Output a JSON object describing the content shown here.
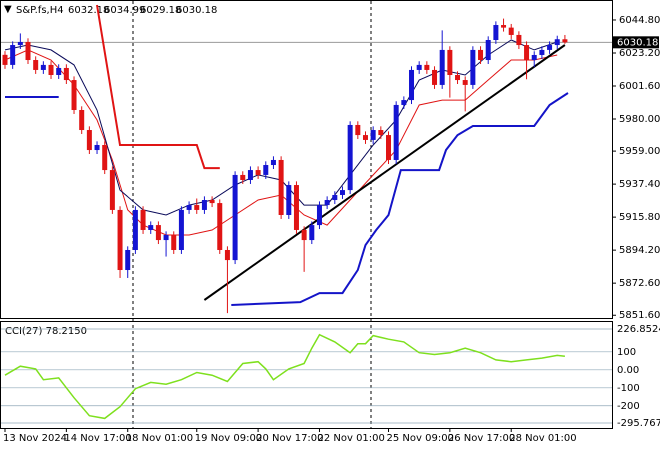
{
  "chart_data": {
    "type": "candlestick",
    "title": "S&P.fs,H4",
    "categories": [
      "13 Nov 2024",
      null,
      null,
      null,
      null,
      null,
      null,
      null,
      "14 Nov 17:00",
      null,
      null,
      null,
      null,
      null,
      null,
      null,
      "18 Nov 01:00",
      null,
      null,
      null,
      null,
      null,
      null,
      null,
      null,
      "19 Nov 09:00",
      null,
      null,
      null,
      null,
      null,
      null,
      null,
      "20 Nov 17:00",
      null,
      null,
      null,
      null,
      null,
      null,
      null,
      "22 Nov 01:00",
      null,
      null,
      null,
      null,
      null,
      null,
      null,
      null,
      "25 Nov 09:00",
      null,
      null,
      null,
      null,
      null,
      null,
      null,
      "26 Nov 17:00",
      null,
      null,
      null,
      null,
      null,
      null,
      null,
      "28 Nov 01:00",
      null,
      null,
      null,
      null,
      null,
      null,
      null
    ],
    "open": [
      6022.0,
      6015.4,
      6028.4,
      6030.4,
      6018.6,
      6012.1,
      6015.4,
      6008.8,
      6013.4,
      6005.5,
      5985.9,
      5972.8,
      5959.7,
      5963.0,
      5946.6,
      5920.5,
      5881.2,
      5894.3,
      5920.5,
      5907.4,
      5910.6,
      5900.8,
      5904.1,
      5894.3,
      5920.5,
      5923.7,
      5920.5,
      5927.0,
      5925.0,
      5894.3,
      5887.7,
      5943.4,
      5940.1,
      5946.6,
      5943.4,
      5949.9,
      5953.2,
      5917.2,
      5936.8,
      5907.4,
      5900.8,
      5910.6,
      5923.7,
      5927.0,
      5930.3,
      5933.5,
      5976.1,
      5969.5,
      5966.3,
      5972.8,
      5969.5,
      5953.2,
      5989.2,
      5992.4,
      6012.1,
      6015.4,
      6012.1,
      6002.3,
      6025.2,
      6008.8,
      6005.5,
      6002.3,
      6025.2,
      6018.6,
      6031.7,
      6041.5,
      6039.8,
      6035.0,
      6028.4,
      6018.6,
      6021.9,
      6025.2,
      6028.4,
      6032.18
    ],
    "high": [
      6024.4,
      6030.8,
      6036.0,
      6032.8,
      6021.0,
      6017.8,
      6017.8,
      6015.8,
      6015.8,
      6007.9,
      5988.3,
      5975.2,
      5965.4,
      5965.4,
      5949.0,
      5922.9,
      5896.7,
      5922.9,
      5922.9,
      5913.0,
      5913.0,
      5906.5,
      5906.5,
      5922.9,
      5926.1,
      5928.0,
      5929.4,
      5929.4,
      5927.4,
      5896.7,
      5945.8,
      5945.8,
      5949.0,
      5949.0,
      5952.3,
      5955.6,
      5955.6,
      5939.2,
      5939.2,
      5909.8,
      5913.0,
      5926.1,
      5929.4,
      5932.7,
      5935.9,
      5978.5,
      5978.5,
      5971.9,
      5975.2,
      5975.2,
      5971.9,
      5991.6,
      5994.8,
      6014.5,
      6017.8,
      6017.8,
      6014.5,
      6038.0,
      6027.6,
      6011.2,
      6007.9,
      6027.6,
      6027.6,
      6034.1,
      6043.9,
      6045.7,
      6042.2,
      6037.4,
      6030.8,
      6024.3,
      6027.6,
      6030.8,
      6034.5,
      6034.99
    ],
    "low": [
      6012.8,
      6012.8,
      6025.8,
      6016.0,
      6009.5,
      6009.5,
      6006.2,
      6006.2,
      6002.9,
      5983.3,
      5970.2,
      5957.1,
      5957.1,
      5944.0,
      5917.9,
      5876.0,
      5876.0,
      5891.7,
      5904.8,
      5904.8,
      5898.2,
      5890.0,
      5891.7,
      5891.7,
      5917.9,
      5917.9,
      5917.9,
      5922.4,
      5891.7,
      5853.0,
      5885.1,
      5937.5,
      5937.5,
      5940.8,
      5940.8,
      5947.3,
      5914.6,
      5914.6,
      5904.8,
      5880.0,
      5898.2,
      5908.0,
      5921.1,
      5924.4,
      5927.7,
      5930.9,
      5966.9,
      5963.7,
      5963.7,
      5966.9,
      5950.6,
      5950.6,
      5986.6,
      5989.8,
      6009.5,
      6009.5,
      5999.7,
      5999.7,
      5994.0,
      6002.9,
      5985.0,
      5999.7,
      6016.0,
      6016.0,
      6029.1,
      6037.2,
      6032.4,
      6025.8,
      6006.0,
      6014.0,
      6019.3,
      6022.6,
      6025.8,
      6029.18
    ],
    "close": [
      6015.4,
      6028.4,
      6030.4,
      6018.6,
      6012.1,
      6015.4,
      6008.8,
      6013.4,
      6005.5,
      5985.9,
      5972.8,
      5959.7,
      5963.0,
      5946.6,
      5920.5,
      5881.2,
      5894.3,
      5920.5,
      5907.4,
      5910.6,
      5900.8,
      5904.1,
      5894.3,
      5920.5,
      5923.7,
      5920.5,
      5927.0,
      5925.0,
      5894.3,
      5887.7,
      5943.4,
      5940.1,
      5946.6,
      5943.4,
      5949.9,
      5953.2,
      5917.2,
      5936.8,
      5907.4,
      5900.8,
      5910.6,
      5923.7,
      5927.0,
      5930.3,
      5933.5,
      5976.1,
      5969.5,
      5966.3,
      5972.8,
      5969.5,
      5953.2,
      5989.2,
      5992.4,
      6012.1,
      6015.4,
      6012.1,
      6002.3,
      6025.2,
      6008.8,
      6005.5,
      6002.3,
      6025.2,
      6018.6,
      6031.7,
      6041.5,
      6039.8,
      6035.0,
      6028.4,
      6018.6,
      6021.9,
      6025.2,
      6028.4,
      6032.2,
      6030.18
    ],
    "up_color": "#1414d2",
    "down_color": "#e01414",
    "ylim": [
      5849.8,
      6054.6
    ],
    "yticks": [
      {
        "value": 6044.8,
        "label": "6044.80"
      },
      {
        "value": 6023.2,
        "label": "6023.20"
      },
      {
        "value": 6001.6,
        "label": "6001.60"
      },
      {
        "value": 5980,
        "label": "5980.00"
      },
      {
        "value": 5959,
        "label": "5959.00"
      },
      {
        "value": 5937.4,
        "label": "5937.40"
      },
      {
        "value": 5915.8,
        "label": "5915.80"
      },
      {
        "value": 5894.2,
        "label": "5894.20"
      },
      {
        "value": 5872.6,
        "label": "5872.60"
      },
      {
        "value": 5851.6,
        "label": "5851.60"
      }
    ],
    "overlays": [
      {
        "color": "#e01414",
        "width": 2,
        "x": [
          12,
          15,
          25,
          26,
          28
        ],
        "values": [
          6054.6,
          5963.0,
          5963.0,
          5947.9,
          5947.9
        ]
      },
      {
        "color": "#1414c8",
        "width": 2,
        "x": [
          0,
          7,
          8,
          29.5,
          38.5,
          41,
          44,
          46,
          47,
          48.4,
          50,
          51.6,
          56.6,
          57.5,
          59,
          61,
          69,
          71,
          73.4
        ],
        "values": [
          5994.4,
          5994.4,
          null,
          5858.3,
          5860.2,
          5866.1,
          5866.1,
          5881.2,
          5897.5,
          5907.4,
          5917.2,
          5946.6,
          5946.6,
          5959.7,
          5969.5,
          5975.4,
          5975.4,
          5989.2,
          5997.0
        ]
      },
      {
        "color": "#e01414",
        "width": 1,
        "x": [
          0,
          3,
          6,
          9,
          12,
          14,
          16,
          18,
          21,
          24,
          27,
          30,
          33,
          36,
          39,
          42,
          45,
          48,
          51,
          54,
          57,
          60,
          63,
          66,
          69,
          72
        ],
        "values": [
          6018.6,
          6025.2,
          6018.6,
          6002.3,
          5979.4,
          5953.2,
          5920.5,
          5910.6,
          5904.1,
          5904.1,
          5907.4,
          5917.2,
          5927.0,
          5930.3,
          5917.2,
          5910.6,
          5927.0,
          5943.4,
          5959.7,
          5989.2,
          5992.4,
          5992.4,
          6005.5,
          6018.6,
          6018.6,
          6021.9
        ]
      },
      {
        "color": "#0a0a5a",
        "width": 1,
        "x": [
          0,
          3,
          6,
          9,
          12,
          15,
          18,
          21,
          24,
          27,
          30,
          33,
          36,
          39,
          42,
          45,
          48,
          51,
          54,
          57,
          60,
          63,
          66,
          69,
          72
        ],
        "values": [
          6025.2,
          6028.4,
          6025.2,
          6015.4,
          5985.9,
          5933.5,
          5920.5,
          5917.2,
          5923.7,
          5927.0,
          5936.8,
          5943.4,
          5940.1,
          5923.7,
          5923.7,
          5943.4,
          5963.0,
          5979.4,
          6005.5,
          6012.1,
          6008.8,
          6021.9,
          6031.7,
          6025.2,
          6030.4
        ]
      }
    ],
    "trendline": {
      "color": "#000000",
      "x": [
        26,
        73
      ],
      "values": [
        5861.6,
        6028.4
      ]
    },
    "indicator": {
      "type": "line",
      "title": "CCI(27) 78.2150",
      "color": "#7ee01e",
      "x": [
        0,
        2,
        4,
        5,
        7,
        9,
        11,
        13,
        15,
        17,
        19,
        21,
        23,
        25,
        27,
        29,
        31,
        33,
        34,
        35,
        37,
        39,
        40,
        41,
        43,
        45,
        46,
        47,
        48,
        50,
        52,
        54,
        56,
        58,
        60,
        62,
        64,
        66,
        68,
        70,
        72,
        73
      ],
      "values": [
        -30,
        20,
        5,
        -55,
        -45,
        -155,
        -255,
        -270,
        -205,
        -105,
        -70,
        -80,
        -55,
        -15,
        -30,
        -65,
        35,
        45,
        5,
        -55,
        5,
        35,
        120,
        195,
        155,
        95,
        145,
        145,
        190,
        170,
        155,
        95,
        85,
        95,
        120,
        95,
        55,
        45,
        55,
        65,
        80,
        75
      ],
      "ylim": [
        -295.7671,
        226.8524
      ],
      "yticks": [
        226.8524,
        100,
        {
          "value": 0,
          "label": "0.00"
        },
        -100,
        -200,
        -295.7671
      ]
    }
  }
}
